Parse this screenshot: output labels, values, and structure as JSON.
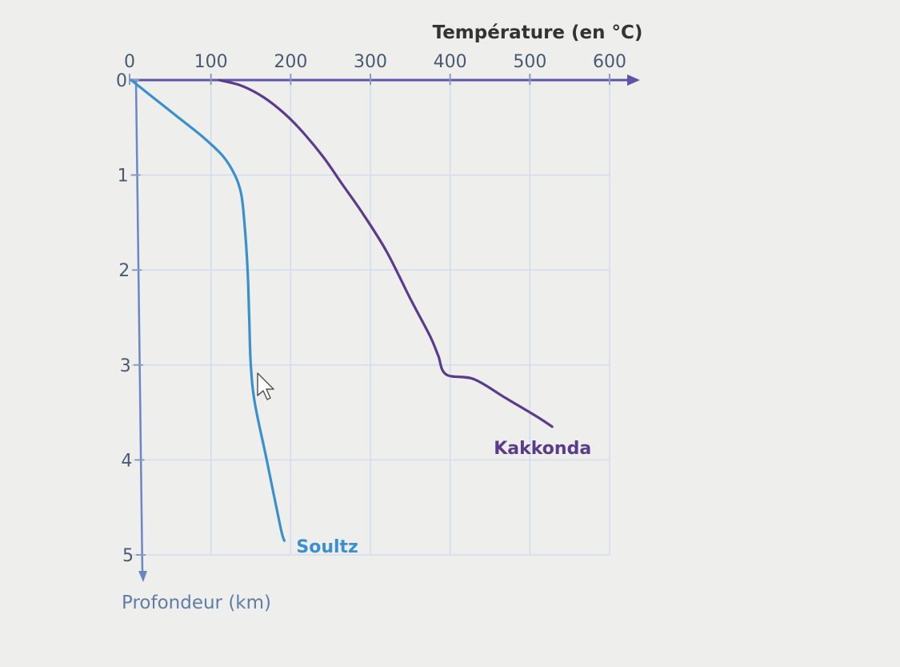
{
  "chart_data": {
    "type": "line",
    "x_axis": {
      "label": "Température (en °C)",
      "range": [
        0,
        600
      ],
      "ticks": [
        0,
        100,
        200,
        300,
        400,
        500,
        600
      ],
      "tick_labels": [
        "0",
        "100",
        "200",
        "300",
        "400",
        "500",
        "600"
      ],
      "position": "top"
    },
    "y_axis": {
      "label": "Profondeur (km)",
      "range": [
        0,
        5
      ],
      "ticks": [
        0,
        1,
        2,
        3,
        4,
        5
      ],
      "tick_labels": [
        "0",
        "1",
        "2",
        "3",
        "4",
        "5"
      ],
      "inverted": true
    },
    "grid": true,
    "series": [
      {
        "name": "Soultz",
        "color": "#3a8fce",
        "points": [
          [
            0,
            0
          ],
          [
            30,
            0.2
          ],
          [
            60,
            0.4
          ],
          [
            90,
            0.6
          ],
          [
            115,
            0.8
          ],
          [
            130,
            1.0
          ],
          [
            138,
            1.2
          ],
          [
            142,
            1.5
          ],
          [
            146,
            2.0
          ],
          [
            148,
            2.5
          ],
          [
            150,
            3.0
          ],
          [
            155,
            3.4
          ],
          [
            170,
            4.0
          ],
          [
            187,
            4.7
          ],
          [
            192,
            4.85
          ]
        ]
      },
      {
        "name": "Kakkonda",
        "color": "#5b3b8c",
        "points": [
          [
            110,
            0
          ],
          [
            135,
            0.05
          ],
          [
            160,
            0.15
          ],
          [
            185,
            0.3
          ],
          [
            210,
            0.5
          ],
          [
            240,
            0.8
          ],
          [
            265,
            1.1
          ],
          [
            290,
            1.4
          ],
          [
            320,
            1.8
          ],
          [
            350,
            2.3
          ],
          [
            375,
            2.7
          ],
          [
            385,
            2.9
          ],
          [
            395,
            3.1
          ],
          [
            430,
            3.15
          ],
          [
            470,
            3.35
          ],
          [
            510,
            3.55
          ],
          [
            528,
            3.65
          ]
        ]
      }
    ]
  }
}
